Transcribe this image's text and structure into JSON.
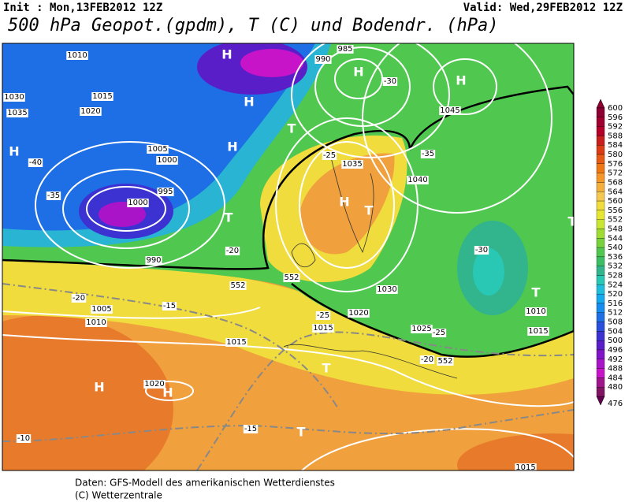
{
  "header": {
    "init": "Init : Mon,13FEB2012 12Z",
    "valid": "Valid: Wed,29FEB2012 12Z",
    "title": "500 hPa Geopot.(gpdm), T (C) und Bodendr. (hPa)"
  },
  "footer": [
    "Daten: GFS-Modell des amerikanischen Wetterdienstes",
    "(C) Wetterzentrale"
  ],
  "colorbar": {
    "labels": [
      "600",
      "596",
      "592",
      "588",
      "584",
      "580",
      "576",
      "572",
      "568",
      "564",
      "560",
      "556",
      "552",
      "548",
      "544",
      "540",
      "536",
      "532",
      "528",
      "524",
      "520",
      "516",
      "512",
      "508",
      "504",
      "500",
      "496",
      "492",
      "488",
      "484",
      "480",
      "476"
    ],
    "colors": [
      "#8b0030",
      "#a00030",
      "#b40028",
      "#c81e1e",
      "#dc3c14",
      "#e65a14",
      "#f07814",
      "#f59628",
      "#f5af3c",
      "#f5c850",
      "#f0dc3c",
      "#e6e632",
      "#c8e632",
      "#a0dc32",
      "#78d23c",
      "#50c850",
      "#3cbe64",
      "#32b48c",
      "#28c8b4",
      "#1ebedc",
      "#14aaf0",
      "#148cf0",
      "#1e6ee6",
      "#2850dc",
      "#3c32d2",
      "#5a1ec8",
      "#8214c8",
      "#aa14c8",
      "#c814c8",
      "#a0148c",
      "#821464",
      "#640050"
    ]
  },
  "map_labels": [
    "H",
    "H",
    "H",
    "H",
    "H",
    "H",
    "H",
    "H",
    "H",
    "T",
    "T",
    "T",
    "T",
    "T",
    "T",
    "T",
    "1010",
    "1015",
    "1020",
    "1035",
    "1030",
    "1005",
    "1000",
    "995",
    "990",
    "1045",
    "1040",
    "1035",
    "1030",
    "1025",
    "1020",
    "1015",
    "1015",
    "1020",
    "1015",
    "1015",
    "1010",
    "1005",
    "1010",
    "-40",
    "-35",
    "-30",
    "-25",
    "-20",
    "-15",
    "-10",
    "-25",
    "-20",
    "-35",
    "-30",
    "-25",
    "-20",
    "-15",
    "552",
    "552",
    "552",
    "985",
    "990",
    "1000"
  ]
}
